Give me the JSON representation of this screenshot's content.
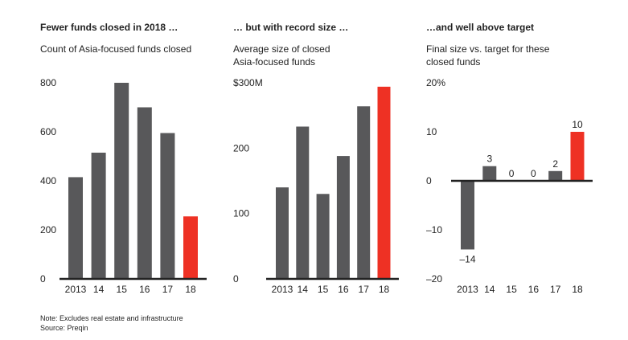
{
  "colors": {
    "bar": "#58585a",
    "highlight": "#ee3124",
    "axis": "#222222"
  },
  "chart_data": [
    {
      "type": "bar",
      "title": "Fewer funds closed in 2018 …",
      "subtitle": "Count of Asia-focused funds closed",
      "categories": [
        "2013",
        "14",
        "15",
        "16",
        "17",
        "18"
      ],
      "values": [
        415,
        515,
        800,
        700,
        595,
        255
      ],
      "highlight_index": 5,
      "yticks": [
        "0",
        "200",
        "400",
        "600",
        "800"
      ],
      "ytick_values": [
        0,
        200,
        400,
        600,
        800
      ],
      "ylim": [
        0,
        800
      ]
    },
    {
      "type": "bar",
      "title": "… but with record size …",
      "subtitle": "Average size of closed Asia-focused funds",
      "categories": [
        "2013",
        "14",
        "15",
        "16",
        "17",
        "18"
      ],
      "values": [
        140,
        233,
        130,
        188,
        264,
        294
      ],
      "highlight_index": 5,
      "yticks": [
        "0",
        "100",
        "200",
        "$300M"
      ],
      "ytick_values": [
        0,
        100,
        200,
        300
      ],
      "ylim": [
        0,
        300
      ]
    },
    {
      "type": "bar",
      "title": "…and well above target",
      "subtitle": "Final size vs. target for these closed funds",
      "categories": [
        "2013",
        "14",
        "15",
        "16",
        "17",
        "18"
      ],
      "values": [
        -14,
        3,
        0,
        0,
        2,
        10
      ],
      "data_labels": [
        "–14",
        "3",
        "0",
        "0",
        "2",
        "10"
      ],
      "highlight_index": 5,
      "yticks": [
        "–20",
        "–10",
        "0",
        "10",
        "20%"
      ],
      "ytick_values": [
        -20,
        -10,
        0,
        10,
        20
      ],
      "ylim": [
        -20,
        20
      ]
    }
  ],
  "notes": {
    "note": "Note: Excludes real estate and infrastructure",
    "source": "Source: Preqin"
  }
}
